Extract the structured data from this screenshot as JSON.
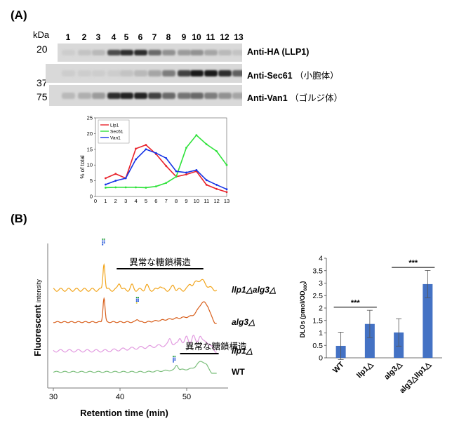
{
  "panel_a": {
    "label": "(A)",
    "kda_label": "kDa",
    "lanes": [
      "1",
      "2",
      "3",
      "4",
      "5",
      "6",
      "7",
      "8",
      "9",
      "10",
      "11",
      "12",
      "13"
    ],
    "mw_markers": [
      "20",
      "37",
      "75"
    ],
    "blots": [
      {
        "antibody": "Anti-HA (LLP1)",
        "note": "",
        "intensity": [
          0.05,
          0.1,
          0.15,
          0.7,
          0.85,
          0.85,
          0.55,
          0.35,
          0.3,
          0.35,
          0.25,
          0.15,
          0.1
        ]
      },
      {
        "antibody": "Anti-Sec61",
        "note": "（小胞体）",
        "intensity": [
          0.05,
          0.05,
          0.05,
          0.05,
          0.1,
          0.15,
          0.25,
          0.45,
          0.75,
          0.95,
          0.95,
          0.85,
          0.6
        ]
      },
      {
        "antibody": "Anti-Van1",
        "note": "（ゴルジ体）",
        "intensity": [
          0.15,
          0.2,
          0.3,
          0.85,
          0.9,
          0.9,
          0.75,
          0.55,
          0.5,
          0.55,
          0.45,
          0.35,
          0.25
        ]
      }
    ]
  },
  "fraction_chart": {
    "chart_data": {
      "type": "line",
      "ylabel": "% of total",
      "ylim": [
        0,
        25
      ],
      "yticks": [
        0,
        5,
        10,
        15,
        20,
        25
      ],
      "xlim": [
        0,
        13
      ],
      "xticks": [
        0,
        1,
        2,
        3,
        4,
        5,
        6,
        7,
        8,
        9,
        10,
        11,
        12,
        13
      ],
      "x": [
        1,
        2,
        3,
        4,
        5,
        6,
        7,
        8,
        9,
        10,
        11,
        12,
        13
      ],
      "series": [
        {
          "name": "Llp1",
          "color": "#e8212a",
          "values": [
            5.8,
            7.2,
            5.8,
            15.2,
            16.4,
            13.5,
            9.7,
            6.3,
            7.0,
            8.0,
            3.7,
            2.4,
            1.4
          ]
        },
        {
          "name": "Sec61",
          "color": "#2fe23b",
          "values": [
            2.8,
            2.9,
            2.9,
            2.9,
            2.8,
            3.2,
            4.3,
            6.3,
            15.5,
            19.5,
            16.6,
            14.4,
            10.0
          ]
        },
        {
          "name": "Van1",
          "color": "#1533e6",
          "values": [
            3.8,
            5.0,
            5.8,
            11.8,
            15.0,
            13.8,
            12.2,
            8.0,
            7.6,
            8.4,
            5.2,
            3.7,
            2.3
          ]
        }
      ]
    }
  },
  "panel_b": {
    "label": "(B)",
    "ylabel": "Fluorescent",
    "ylabel_small": "intensity",
    "xlabel": "Retention time (min)",
    "xticks": [
      "30",
      "40",
      "50"
    ],
    "annot_top": "異常な糖鎖構造",
    "annot_bottom": "異常な糖鎖構造",
    "traces": [
      {
        "label_a": "llp1△alg3△",
        "color": "#f2a51c"
      },
      {
        "label_a": "alg3△",
        "color": "#d85e1a"
      },
      {
        "label_a": "llp1△",
        "color": "#e29ae0"
      },
      {
        "label_a": "WT",
        "color": "#7cbf7c"
      }
    ]
  },
  "dlo_chart": {
    "chart_data": {
      "type": "bar",
      "categories": [
        "WT",
        "llp1△",
        "alg3△",
        "alg3△llp1△"
      ],
      "values": [
        0.48,
        1.36,
        1.02,
        2.96
      ],
      "errors": [
        0.55,
        0.55,
        0.55,
        0.55
      ],
      "ylabel": "DLOs (pmol/OD",
      "ylabel_sub": "600",
      "ylabel_end": ")",
      "ylim": [
        0,
        4
      ],
      "yticks": [
        "0",
        "0.5",
        "1",
        "1.5",
        "2",
        "2.5",
        "3",
        "3.5",
        "4"
      ],
      "bar_color": "#4472c4",
      "significance": [
        {
          "from": 0,
          "to": 1,
          "label": "***"
        },
        {
          "from": 2,
          "to": 3,
          "label": "***"
        }
      ]
    }
  }
}
